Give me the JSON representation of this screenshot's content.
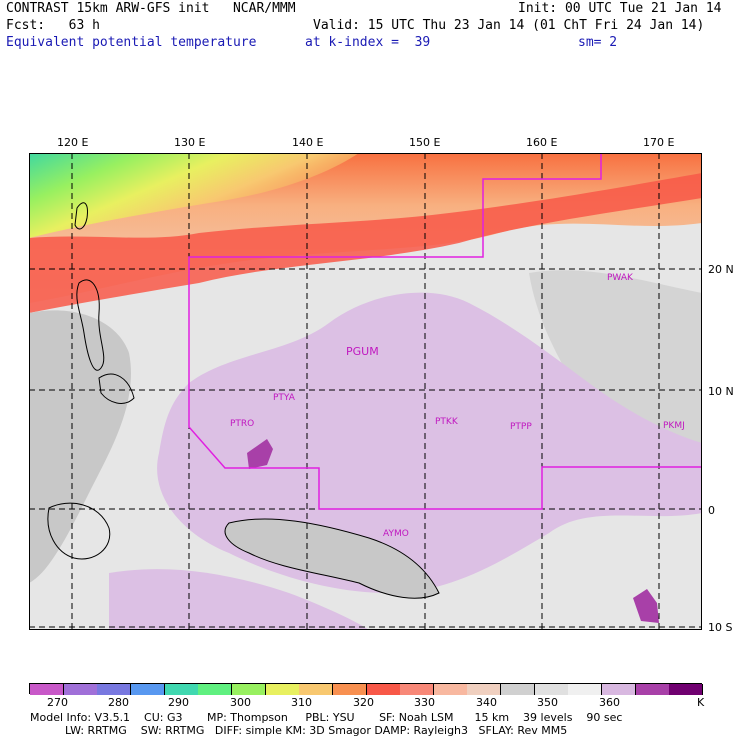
{
  "header": {
    "line1_left": "CONTRAST 15km ARW-GFS init   NCAR/MMM",
    "line1_right": "Init: 00 UTC Tue 21 Jan 14",
    "line2_left": "Fcst:   63 h",
    "line2_right": "Valid: 15 UTC Thu 23 Jan 14 (01 ChT Fri 24 Jan 14)",
    "field_name": "Equivalent potential temperature",
    "level": "at k-index =  39",
    "smoothing": "sm= 2"
  },
  "map": {
    "lon_labels": [
      "120 E",
      "130 E",
      "140 E",
      "150 E",
      "160 E",
      "170 E"
    ],
    "lat_labels": [
      "20 N",
      "10 N",
      "0",
      "10 S"
    ],
    "stations": [
      "PWAK",
      "PGUM",
      "PTYA",
      "PTRO",
      "PTKK",
      "PTPP",
      "PKMJ",
      "AYMO"
    ]
  },
  "colorbar": {
    "labels": [
      "270",
      "280",
      "290",
      "300",
      "310",
      "320",
      "330",
      "340",
      "350",
      "360"
    ],
    "unit": "K",
    "colors": [
      "#c858c8",
      "#a070d8",
      "#7878e0",
      "#5898f0",
      "#40d8b0",
      "#60f080",
      "#98f060",
      "#e8f060",
      "#f8c870",
      "#f89050",
      "#f85848",
      "#f88878",
      "#f8b8a0",
      "#f0d0c0",
      "#d0d0d0",
      "#e0e0e0",
      "#f0f0f0",
      "#d8b8e0",
      "#a840a8",
      "#700070"
    ]
  },
  "footer": {
    "line1": "Model Info: V3.5.1    CU: G3       MP: Thompson     PBL: YSU       SF: Noah LSM      15 km    39 levels    90 sec",
    "line2": "          LW: RRTMG    SW: RRTMG   DIFF: simple KM: 3D Smagor DAMP: Rayleigh3   SFLAY: Rev MM5"
  }
}
